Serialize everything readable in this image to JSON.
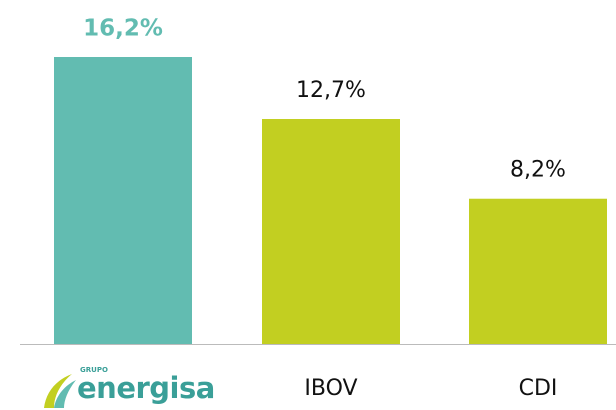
{
  "chart_data": {
    "type": "bar",
    "categories": [
      "energisa",
      "IBOV",
      "CDI"
    ],
    "category_logo_caption": "GRUPO",
    "values": [
      16.2,
      12.7,
      8.2
    ],
    "value_labels": [
      "16,2%",
      "12,7%",
      "8,2%"
    ],
    "colors": [
      "#62bcb1",
      "#c2cf21",
      "#c2cf21"
    ]
  }
}
